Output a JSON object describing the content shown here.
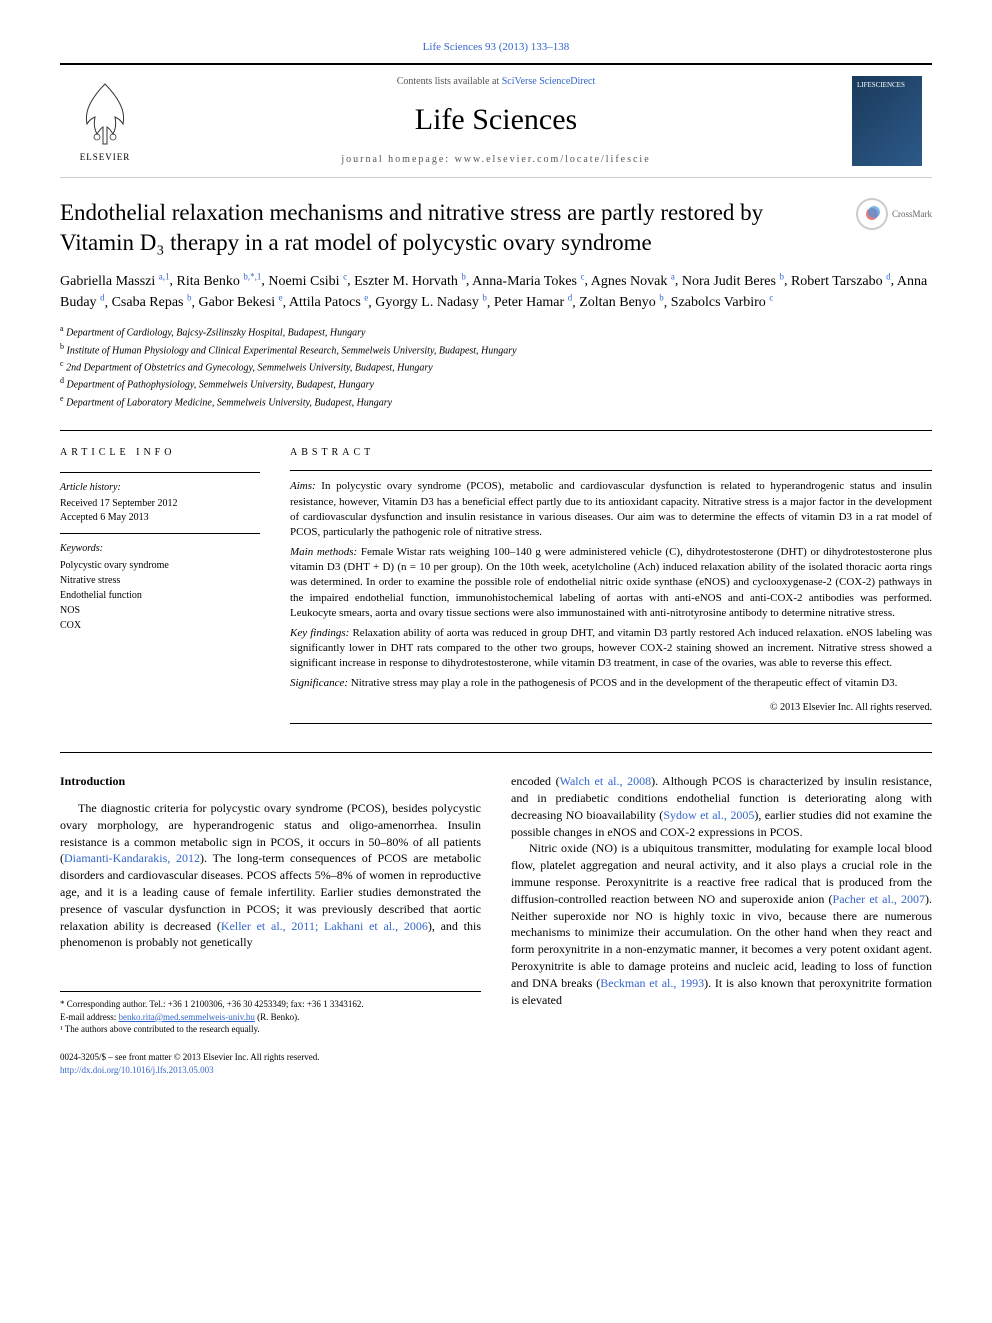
{
  "top_reference": "Life Sciences 93 (2013) 133–138",
  "header": {
    "contents_prefix": "Contents lists available at ",
    "contents_link": "SciVerse ScienceDirect",
    "journal_name": "Life Sciences",
    "homepage_prefix": "journal homepage: ",
    "homepage_url": "www.elsevier.com/locate/lifescie",
    "elsevier_label": "ELSEVIER",
    "cover_label": "LIFESCIENCES"
  },
  "crossmark": "CrossMark",
  "title": "Endothelial relaxation mechanisms and nitrative stress are partly restored by Vitamin D₃ therapy in a rat model of polycystic ovary syndrome",
  "authors": [
    {
      "name": "Gabriella Masszi",
      "affil": "a,1"
    },
    {
      "name": "Rita Benko",
      "affil": "b,*,1"
    },
    {
      "name": "Noemi Csibi",
      "affil": "c"
    },
    {
      "name": "Eszter M. Horvath",
      "affil": "b"
    },
    {
      "name": "Anna-Maria Tokes",
      "affil": "c"
    },
    {
      "name": "Agnes Novak",
      "affil": "a"
    },
    {
      "name": "Nora Judit Beres",
      "affil": "b"
    },
    {
      "name": "Robert Tarszabo",
      "affil": "d"
    },
    {
      "name": "Anna Buday",
      "affil": "d"
    },
    {
      "name": "Csaba Repas",
      "affil": "b"
    },
    {
      "name": "Gabor Bekesi",
      "affil": "e"
    },
    {
      "name": "Attila Patocs",
      "affil": "e"
    },
    {
      "name": "Gyorgy L. Nadasy",
      "affil": "b"
    },
    {
      "name": "Peter Hamar",
      "affil": "d"
    },
    {
      "name": "Zoltan Benyo",
      "affil": "b"
    },
    {
      "name": "Szabolcs Varbiro",
      "affil": "c"
    }
  ],
  "affiliations": [
    {
      "key": "a",
      "text": "Department of Cardiology, Bajcsy-Zsilinszky Hospital, Budapest, Hungary"
    },
    {
      "key": "b",
      "text": "Institute of Human Physiology and Clinical Experimental Research, Semmelweis University, Budapest, Hungary"
    },
    {
      "key": "c",
      "text": "2nd Department of Obstetrics and Gynecology, Semmelweis University, Budapest, Hungary"
    },
    {
      "key": "d",
      "text": "Department of Pathophysiology, Semmelweis University, Budapest, Hungary"
    },
    {
      "key": "e",
      "text": "Department of Laboratory Medicine, Semmelweis University, Budapest, Hungary"
    }
  ],
  "article_info": {
    "heading": "article info",
    "history_label": "Article history:",
    "received": "Received 17 September 2012",
    "accepted": "Accepted 6 May 2013",
    "keywords_label": "Keywords:",
    "keywords": [
      "Polycystic ovary syndrome",
      "Nitrative stress",
      "Endothelial function",
      "NOS",
      "COX"
    ]
  },
  "abstract": {
    "heading": "abstract",
    "aims_label": "Aims:",
    "aims": "In polycystic ovary syndrome (PCOS), metabolic and cardiovascular dysfunction is related to hyperandrogenic status and insulin resistance, however, Vitamin D3 has a beneficial effect partly due to its antioxidant capacity. Nitrative stress is a major factor in the development of cardiovascular dysfunction and insulin resistance in various diseases. Our aim was to determine the effects of vitamin D3 in a rat model of PCOS, particularly the pathogenic role of nitrative stress.",
    "methods_label": "Main methods:",
    "methods": "Female Wistar rats weighing 100–140 g were administered vehicle (C), dihydrotestosterone (DHT) or dihydrotestosterone plus vitamin D3 (DHT + D) (n = 10 per group). On the 10th week, acetylcholine (Ach) induced relaxation ability of the isolated thoracic aorta rings was determined. In order to examine the possible role of endothelial nitric oxide synthase (eNOS) and cyclooxygenase-2 (COX-2) pathways in the impaired endothelial function, immunohistochemical labeling of aortas with anti-eNOS and anti-COX-2 antibodies was performed. Leukocyte smears, aorta and ovary tissue sections were also immunostained with anti-nitrotyrosine antibody to determine nitrative stress.",
    "findings_label": "Key findings:",
    "findings": "Relaxation ability of aorta was reduced in group DHT, and vitamin D3 partly restored Ach induced relaxation. eNOS labeling was significantly lower in DHT rats compared to the other two groups, however COX-2 staining showed an increment. Nitrative stress showed a significant increase in response to dihydrotestosterone, while vitamin D3 treatment, in case of the ovaries, was able to reverse this effect.",
    "significance_label": "Significance:",
    "significance": "Nitrative stress may play a role in the pathogenesis of PCOS and in the development of the therapeutic effect of vitamin D3.",
    "copyright": "© 2013 Elsevier Inc. All rights reserved."
  },
  "body": {
    "intro_heading": "Introduction",
    "col1_p1": "The diagnostic criteria for polycystic ovary syndrome (PCOS), besides polycystic ovary morphology, are hyperandrogenic status and oligo-amenorrhea. Insulin resistance is a common metabolic sign in PCOS, it occurs in 50–80% of all patients (",
    "col1_ref1": "Diamanti-Kandarakis, 2012",
    "col1_p1b": "). The long-term consequences of PCOS are metabolic disorders and cardiovascular diseases. PCOS affects 5%–8% of women in reproductive age, and it is a leading cause of female infertility. Earlier studies demonstrated the presence of vascular dysfunction in PCOS; it was previously described that aortic relaxation ability is decreased (",
    "col1_ref2": "Keller et al., 2011; Lakhani et al., 2006",
    "col1_p1c": "), and this phenomenon is probably not genetically",
    "col2_p1a": "encoded (",
    "col2_ref1": "Walch et al., 2008",
    "col2_p1b": "). Although PCOS is characterized by insulin resistance, and in prediabetic conditions endothelial function is deteriorating along with decreasing NO bioavailability (",
    "col2_ref2": "Sydow et al., 2005",
    "col2_p1c": "), earlier studies did not examine the possible changes in eNOS and COX-2 expressions in PCOS.",
    "col2_p2a": "Nitric oxide (NO) is a ubiquitous transmitter, modulating for example local blood flow, platelet aggregation and neural activity, and it also plays a crucial role in the immune response. Peroxynitrite is a reactive free radical that is produced from the diffusion-controlled reaction between NO and superoxide anion (",
    "col2_ref3": "Pacher et al., 2007",
    "col2_p2b": "). Neither superoxide nor NO is highly toxic in vivo, because there are numerous mechanisms to minimize their accumulation. On the other hand when they react and form peroxynitrite in a non-enzymatic manner, it becomes a very potent oxidant agent. Peroxynitrite is able to damage proteins and nucleic acid, leading to loss of function and DNA breaks (",
    "col2_ref4": "Beckman et al., 1993",
    "col2_p2c": "). It is also known that peroxynitrite formation is elevated"
  },
  "footnotes": {
    "corresponding": "* Corresponding author. Tel.: +36 1 2100306, +36 30 4253349; fax: +36 1 3343162.",
    "email_label": "E-mail address: ",
    "email": "benko.rita@med.semmelweis-univ.hu",
    "email_suffix": " (R. Benko).",
    "equal": "¹ The authors above contributed to the research equally."
  },
  "footer": {
    "issn": "0024-3205/$ – see front matter © 2013 Elsevier Inc. All rights reserved.",
    "doi": "http://dx.doi.org/10.1016/j.lfs.2013.05.003"
  }
}
